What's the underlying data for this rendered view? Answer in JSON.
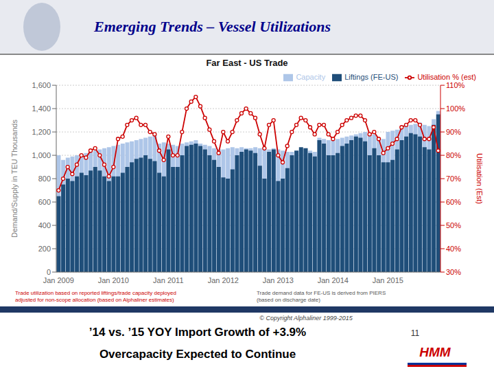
{
  "chart_data": {
    "type": "bar",
    "title": "Emerging Trends – Vessel Utilizations",
    "subtitle": "Far East - US Trade",
    "ylabel": "Demand/Supply in TEU  Thousands",
    "y2label": "Utilisation (Est)",
    "categories": [
      "Jan 2009",
      null,
      null,
      null,
      null,
      null,
      null,
      null,
      null,
      null,
      null,
      null,
      "Jan 2010",
      null,
      null,
      null,
      null,
      null,
      null,
      null,
      null,
      null,
      null,
      null,
      "Jan 2011",
      null,
      null,
      null,
      null,
      null,
      null,
      null,
      null,
      null,
      null,
      null,
      "Jan 2012",
      null,
      null,
      null,
      null,
      null,
      null,
      null,
      null,
      null,
      null,
      null,
      "Jan 2013",
      null,
      null,
      null,
      null,
      null,
      null,
      null,
      null,
      null,
      null,
      null,
      "Jan 2014",
      null,
      null,
      null,
      null,
      null,
      null,
      null,
      null,
      null,
      null,
      null,
      "Jan 2015",
      null,
      null,
      null,
      null,
      null,
      null,
      null,
      null,
      null,
      null,
      null
    ],
    "series": [
      {
        "name": "Capacity",
        "type": "bar",
        "color": "#aec6e8",
        "values": [
          1000,
          960,
          980,
          990,
          1000,
          1010,
          1020,
          1030,
          1040,
          1050,
          1060,
          1070,
          1080,
          1090,
          1100,
          1110,
          1120,
          1130,
          1140,
          1150,
          1160,
          1170,
          1100,
          1110,
          1100,
          1090,
          1080,
          1100,
          1110,
          1120,
          1130,
          1100,
          1090,
          1080,
          1060,
          1050,
          1050,
          1060,
          1070,
          1060,
          1070,
          1060,
          1060,
          1070,
          1060,
          1060,
          1050,
          1060,
          1050,
          1040,
          1030,
          1030,
          1040,
          1050,
          1060,
          1040,
          1030,
          1150,
          1140,
          1130,
          1130,
          1140,
          1150,
          1160,
          1170,
          1180,
          1190,
          1200,
          1180,
          1180,
          1150,
          1140,
          1200,
          1210,
          1220,
          1230,
          1250,
          1260,
          1270,
          1280,
          1260,
          1250,
          1310,
          1380
        ]
      },
      {
        "name": "Liftings (FE-US)",
        "type": "bar",
        "color": "#1f4e79",
        "values": [
          650,
          750,
          800,
          780,
          820,
          850,
          830,
          870,
          900,
          870,
          820,
          780,
          820,
          820,
          850,
          900,
          940,
          970,
          980,
          1000,
          970,
          950,
          850,
          820,
          1050,
          900,
          900,
          1000,
          1080,
          1090,
          1100,
          1080,
          1050,
          1000,
          960,
          900,
          810,
          800,
          880,
          1000,
          1030,
          1050,
          1040,
          1020,
          910,
          800,
          1030,
          1050,
          780,
          800,
          890,
          1000,
          1040,
          1070,
          1060,
          1020,
          990,
          1130,
          1100,
          1000,
          1000,
          1020,
          1080,
          1100,
          1130,
          1160,
          1150,
          1120,
          1000,
          1060,
          1000,
          940,
          940,
          960,
          1050,
          1130,
          1160,
          1190,
          1180,
          1160,
          1070,
          1050,
          1260,
          1350
        ]
      },
      {
        "name": "Utilisation % (est)",
        "type": "line",
        "axis": "y2",
        "color": "#cc0000",
        "marker": "circle",
        "line_style": "solid",
        "values": [
          65,
          70,
          75,
          72,
          76,
          80,
          79,
          82,
          83,
          80,
          76,
          71,
          75,
          87,
          88,
          93,
          95,
          96,
          93,
          93,
          90,
          89,
          82,
          78,
          88,
          80,
          80,
          90,
          100,
          103,
          105,
          101,
          96,
          91,
          86,
          81,
          90,
          86,
          90,
          95,
          98,
          100,
          98,
          96,
          89,
          83,
          93,
          95,
          80,
          77,
          84,
          90,
          93,
          96,
          95,
          92,
          89,
          93,
          93,
          89,
          87,
          90,
          93,
          95,
          96,
          97,
          97,
          95,
          89,
          90,
          87,
          81,
          83,
          85,
          87,
          92,
          93,
          95,
          95,
          93,
          87,
          87,
          92,
          82
        ]
      }
    ],
    "ylim": [
      0,
      1600
    ],
    "yticks": [
      0,
      200,
      400,
      600,
      800,
      {
        "value": 1000,
        "label": "1,000"
      },
      {
        "value": 1200,
        "label": "1,200"
      },
      {
        "value": 1400,
        "label": "1,400"
      },
      {
        "value": 1600,
        "label": "1,600"
      }
    ],
    "y2lim": [
      30,
      110
    ],
    "y2ticks": [
      {
        "value": 30,
        "label": "30%"
      },
      {
        "value": 40,
        "label": "40%"
      },
      {
        "value": 50,
        "label": "50%"
      },
      {
        "value": 60,
        "label": "60%"
      },
      {
        "value": 70,
        "label": "70%"
      },
      {
        "value": 80,
        "label": "80%"
      },
      {
        "value": 90,
        "label": "90%"
      },
      {
        "value": 100,
        "label": "100%"
      },
      {
        "value": 110,
        "label": "110%"
      }
    ],
    "grid": true,
    "legend": "upper right",
    "annotations": [
      "Trade utilization based on reported liftings/trade capacity deployed\nadjusted for non-scope allocation (based on Alphaliner estimates)",
      "Trade demand data for FE-US is derived from PIERS\n(based on discharge date)",
      "© Copyright Alphaliner 1999-2015",
      "’14 vs. ’15 YOY Import Growth of +3.9%",
      "Overcapacity Expected to Continue",
      "11",
      "HMM"
    ]
  }
}
